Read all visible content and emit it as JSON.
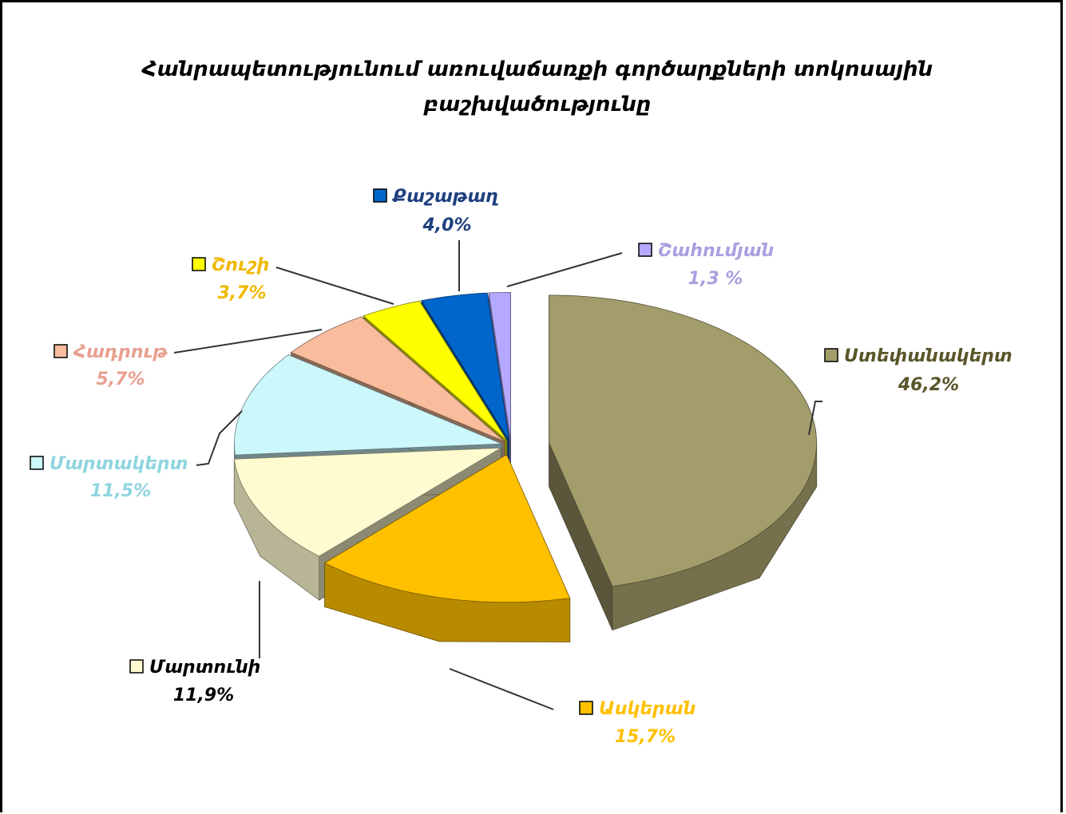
{
  "chart_data": {
    "type": "pie3d",
    "title": "Հանրապետությունում առուվաճառքի գործարքների տոկոսային բաշխվածությունը",
    "categories": [
      "Ստեփանակերտ",
      "Ասկերան",
      "Մարտունի",
      "Մարտակերտ",
      "Հադրութ",
      "Շուշի",
      "Քաշաթաղ",
      "Շահումյան"
    ],
    "values": [
      46.2,
      15.7,
      11.9,
      11.5,
      5.7,
      3.7,
      4.0,
      1.3
    ],
    "value_labels": [
      "46,2%",
      "15,7%",
      "11,9%",
      "11,5%",
      "5,7%",
      "3,7%",
      "4,0%",
      "1,3 %"
    ],
    "colors": [
      "#a39d6b",
      "#ffc000",
      "#fffbd0",
      "#ccf7fb",
      "#f9bd9d",
      "#ffff00",
      "#0066cc",
      "#b4a9ff"
    ]
  }
}
